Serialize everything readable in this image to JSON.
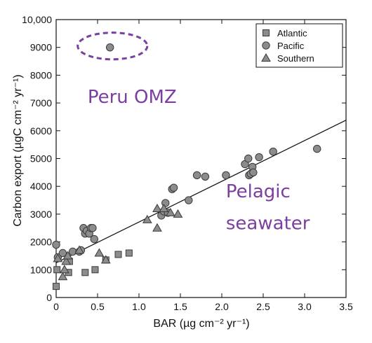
{
  "colors": {
    "marker_fill": "#8c8c8c",
    "marker_stroke": "#3a3a3a",
    "axis": "#111111",
    "annotation": "#7a3fa0"
  },
  "chart_data": {
    "type": "scatter",
    "xlabel": "BAR (µg cm⁻² yr⁻¹)",
    "ylabel": "Carbon export (µgC cm⁻² yr⁻¹)",
    "xlim": [
      0,
      3.5
    ],
    "ylim": [
      0,
      10000
    ],
    "x_ticks": [
      0,
      0.5,
      1.0,
      1.5,
      2.0,
      2.5,
      3.0,
      3.5
    ],
    "x_tick_labels": [
      "0",
      "0.5",
      "1.0",
      "1.5",
      "2.0",
      "2.5",
      "3.0",
      "3.5"
    ],
    "y_ticks": [
      0,
      1000,
      2000,
      3000,
      4000,
      5000,
      6000,
      7000,
      8000,
      9000,
      10000
    ],
    "y_tick_labels": [
      "0",
      "1000",
      "2000",
      "3000",
      "4000",
      "5000",
      "6000",
      "7000",
      "8000",
      "9000",
      "10,000"
    ],
    "grid": false,
    "legend_position": "top-right",
    "series": [
      {
        "name": "Atlantic",
        "marker": "square",
        "points": [
          [
            0.0,
            400
          ],
          [
            0.01,
            1000
          ],
          [
            0.15,
            900
          ],
          [
            0.35,
            900
          ],
          [
            0.47,
            1000
          ],
          [
            0.6,
            1350
          ],
          [
            0.75,
            1550
          ],
          [
            0.88,
            1600
          ],
          [
            0.16,
            1300
          ]
        ]
      },
      {
        "name": "Pacific",
        "marker": "circle",
        "points": [
          [
            0.0,
            1900
          ],
          [
            0.02,
            1450
          ],
          [
            0.08,
            1600
          ],
          [
            0.2,
            1650
          ],
          [
            0.28,
            1650
          ],
          [
            0.3,
            1700
          ],
          [
            0.33,
            2500
          ],
          [
            0.35,
            2300
          ],
          [
            0.37,
            2400
          ],
          [
            0.4,
            2300
          ],
          [
            0.42,
            2500
          ],
          [
            0.44,
            2500
          ],
          [
            0.46,
            2100
          ],
          [
            0.65,
            9000
          ],
          [
            1.27,
            2950
          ],
          [
            1.3,
            3100
          ],
          [
            1.32,
            3400
          ],
          [
            1.35,
            3050
          ],
          [
            1.4,
            3900
          ],
          [
            1.42,
            3950
          ],
          [
            1.6,
            3500
          ],
          [
            1.7,
            4400
          ],
          [
            1.8,
            4350
          ],
          [
            2.05,
            4400
          ],
          [
            2.28,
            4800
          ],
          [
            2.32,
            5000
          ],
          [
            2.33,
            4400
          ],
          [
            2.35,
            4450
          ],
          [
            2.37,
            4700
          ],
          [
            2.38,
            4500
          ],
          [
            2.45,
            5050
          ],
          [
            2.62,
            5250
          ],
          [
            3.15,
            5350
          ]
        ]
      },
      {
        "name": "Southern",
        "marker": "triangle",
        "points": [
          [
            0.02,
            1400
          ],
          [
            0.08,
            750
          ],
          [
            0.1,
            1000
          ],
          [
            0.12,
            1300
          ],
          [
            0.14,
            1500
          ],
          [
            0.28,
            1700
          ],
          [
            0.52,
            1600
          ],
          [
            0.6,
            1350
          ],
          [
            1.1,
            2800
          ],
          [
            1.22,
            2500
          ],
          [
            1.22,
            3200
          ],
          [
            1.3,
            3200
          ],
          [
            1.38,
            3050
          ],
          [
            1.47,
            3000
          ]
        ]
      }
    ],
    "regression_line": {
      "x": [
        0,
        3.5
      ],
      "y": [
        1250,
        6380
      ]
    },
    "annotations": [
      {
        "text": "Peru OMZ",
        "x": 0.38,
        "y": 7000
      },
      {
        "text": "Pelagic",
        "x": 2.05,
        "y": 3600
      },
      {
        "text": "seawater",
        "x": 2.05,
        "y": 2450
      }
    ],
    "highlight_ellipse": {
      "cx": 0.68,
      "cy": 9050,
      "rx": 0.42,
      "ry": 480
    }
  }
}
